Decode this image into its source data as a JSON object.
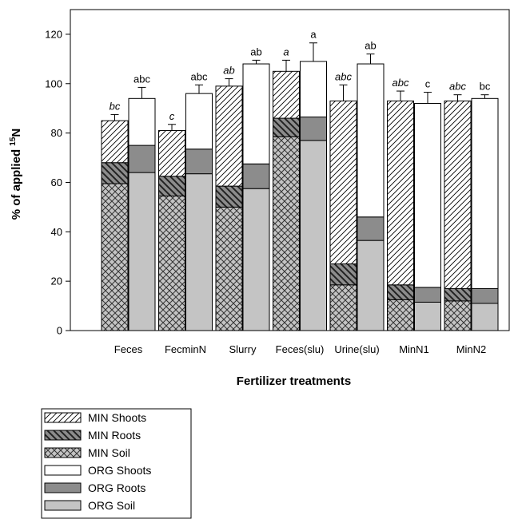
{
  "chart_data": {
    "type": "bar",
    "subtype": "stacked-bar-pairs",
    "xlabel": "Fertilizer treatments",
    "ylabel_prefix": "% of applied ",
    "ylabel_sup": "15",
    "ylabel_suffix": "N",
    "ylim": [
      0,
      130
    ],
    "yticks": [
      0,
      20,
      40,
      60,
      80,
      100,
      120
    ],
    "grid": false,
    "categories": [
      "Feces",
      "FecminN",
      "Slurry",
      "Feces(slu)",
      "Urine(slu)",
      "MinN1",
      "MinN2"
    ],
    "min_series": {
      "soil": [
        59.5,
        54.5,
        50,
        78.5,
        18.5,
        12.5,
        12
      ],
      "roots": [
        8.5,
        8,
        8.5,
        7.5,
        8.5,
        6,
        5
      ],
      "shoots": [
        17,
        18.5,
        40.5,
        19,
        66,
        74.5,
        76
      ]
    },
    "org_series": {
      "soil": [
        64,
        63.5,
        57.5,
        77,
        36.5,
        11.5,
        11
      ],
      "roots": [
        11,
        10,
        10,
        9.5,
        9.5,
        6,
        6
      ],
      "shoots": [
        19,
        22.5,
        40.5,
        22.5,
        62,
        74.5,
        77
      ]
    },
    "min_total": [
      85,
      81,
      99,
      105,
      93,
      93,
      93
    ],
    "org_total": [
      94,
      96,
      108,
      109,
      108,
      92,
      94
    ],
    "min_error": [
      2.5,
      2.5,
      3,
      4.5,
      6.5,
      4,
      2.5
    ],
    "org_error": [
      4.5,
      3.5,
      1.5,
      7.5,
      4,
      4.5,
      1.5
    ],
    "min_letters": [
      "bc",
      "c",
      "ab",
      "a",
      "abc",
      "abc",
      "abc"
    ],
    "org_letters": [
      "abc",
      "abc",
      "ab",
      "a",
      "ab",
      "c",
      "bc"
    ],
    "legend": {
      "placement": "bottom-left",
      "entries": [
        {
          "label": "MIN Shoots",
          "pattern": "hatch-fwd"
        },
        {
          "label": "MIN Roots",
          "pattern": "hatch-back-dark"
        },
        {
          "label": "MIN Soil",
          "pattern": "crosshatch"
        },
        {
          "label": "ORG Shoots",
          "pattern": "white"
        },
        {
          "label": "ORG Roots",
          "pattern": "dark-gray"
        },
        {
          "label": "ORG Soil",
          "pattern": "light-gray"
        }
      ]
    },
    "colors": {
      "org_roots": "#8c8c8c",
      "org_soil": "#c4c4c4",
      "min_roots_bg": "#8c8c8c",
      "min_soil_bg": "#c4c4c4",
      "outline": "#000000"
    }
  }
}
